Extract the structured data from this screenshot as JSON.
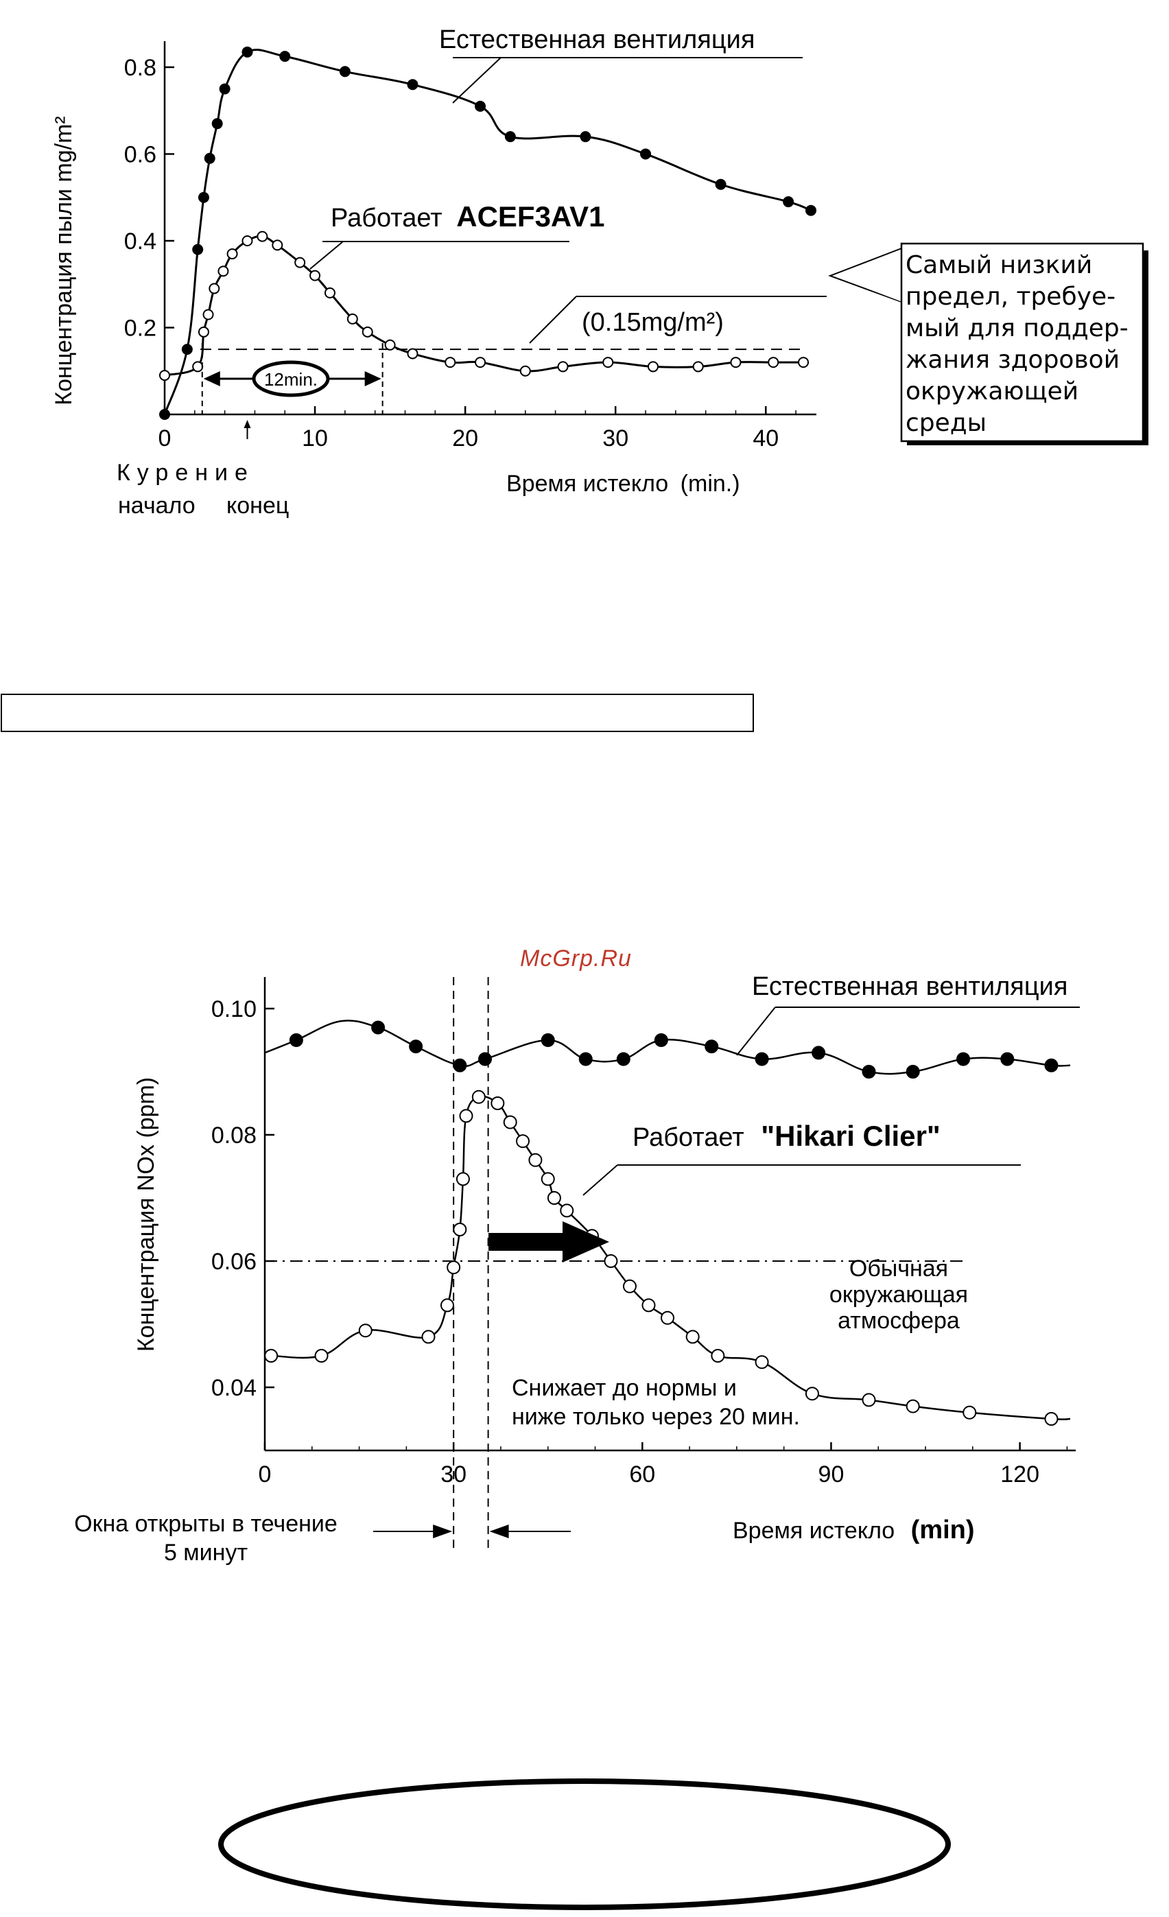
{
  "watermark": "McGrp.Ru",
  "chart_data": [
    {
      "type": "line",
      "title": "",
      "xlabel": "Время истекло",
      "xlabel_unit": "(min.)",
      "ylabel": "Концентрация пыли mg/m²",
      "xlim": [
        0,
        43
      ],
      "ylim": [
        0,
        0.86
      ],
      "x_ticks": [
        "0",
        "10",
        "20",
        "30",
        "40"
      ],
      "y_ticks": [
        "0.2",
        "0.4",
        "0.6",
        "0.8"
      ],
      "series": [
        {
          "name": "Естественная вентиляция",
          "marker": "filled",
          "x": [
            0,
            1.5,
            2.2,
            2.6,
            3.0,
            3.5,
            4.0,
            5.5,
            8.0,
            12.0,
            16.5,
            21.0,
            23.0,
            28.0,
            32.0,
            37.0,
            41.5,
            43.0
          ],
          "y": [
            0.0,
            0.15,
            0.38,
            0.5,
            0.59,
            0.67,
            0.75,
            0.835,
            0.825,
            0.79,
            0.76,
            0.71,
            0.64,
            0.64,
            0.6,
            0.53,
            0.49,
            0.47
          ]
        },
        {
          "name": "Работает ACEF3AV1",
          "name_prefix": "Работает",
          "name_model": "ACEF3AV1",
          "marker": "open",
          "x": [
            0,
            2.2,
            2.6,
            2.9,
            3.3,
            3.9,
            4.5,
            5.5,
            6.5,
            7.5,
            9.0,
            10.0,
            11.0,
            12.5,
            13.5,
            15.0,
            16.5,
            19.0,
            21.0,
            24.0,
            26.5,
            29.5,
            32.5,
            35.5,
            38.0,
            40.5,
            42.5
          ],
          "y": [
            0.09,
            0.11,
            0.19,
            0.23,
            0.29,
            0.33,
            0.37,
            0.4,
            0.41,
            0.39,
            0.35,
            0.32,
            0.28,
            0.22,
            0.19,
            0.16,
            0.14,
            0.12,
            0.12,
            0.1,
            0.11,
            0.12,
            0.11,
            0.11,
            0.12,
            0.12,
            0.12
          ]
        }
      ],
      "reference_line": {
        "y": 0.15,
        "label": "(0.15mg/m²)"
      },
      "bracket": {
        "from": 2.5,
        "to": 14.5,
        "label": "12min."
      },
      "smoking_labels": {
        "title": "Курение",
        "start": "начало",
        "end": "конец",
        "start_x": 2.5,
        "end_x": 5.5
      },
      "callout": [
        "Самый низкий",
        "предел, требуе-",
        "мый для поддер-",
        "жания здоровой",
        "окружающей",
        "среды"
      ]
    },
    {
      "type": "line",
      "title": "",
      "xlabel": "Время истекло",
      "xlabel_unit": "(min)",
      "ylabel": "Концентрация NOx (ppm)",
      "xlim": [
        0,
        128
      ],
      "ylim": [
        0.03,
        0.105
      ],
      "x_ticks": [
        "0",
        "30",
        "60",
        "90",
        "120"
      ],
      "y_ticks": [
        "0.04",
        "0.06",
        "0.08",
        "0.10"
      ],
      "series": [
        {
          "name": "Естественная вентиляция",
          "marker": "filled",
          "x": [
            0,
            5,
            12,
            18,
            24,
            31,
            35,
            45,
            51,
            57,
            63,
            71,
            79,
            88,
            96,
            103,
            111,
            118,
            125,
            128
          ],
          "y": [
            0.093,
            0.095,
            0.098,
            0.097,
            0.094,
            0.091,
            0.092,
            0.095,
            0.092,
            0.092,
            0.095,
            0.094,
            0.092,
            0.093,
            0.09,
            0.09,
            0.092,
            0.092,
            0.091,
            0.091
          ],
          "unmarked_points": [
            0,
            12,
            128
          ]
        },
        {
          "name": "Работает \"Hikari Clier\"",
          "name_prefix": "Работает",
          "name_model": "\"Hikari Clier\"",
          "marker": "open",
          "x": [
            1,
            9,
            16,
            26,
            29,
            30,
            31,
            31.5,
            32,
            34,
            37,
            39,
            41,
            43,
            45,
            46,
            48,
            52,
            55,
            58,
            61,
            64,
            68,
            72,
            79,
            87,
            96,
            103,
            112,
            125,
            128
          ],
          "y": [
            0.045,
            0.045,
            0.049,
            0.048,
            0.053,
            0.059,
            0.065,
            0.073,
            0.083,
            0.086,
            0.085,
            0.082,
            0.079,
            0.076,
            0.073,
            0.07,
            0.068,
            0.064,
            0.06,
            0.056,
            0.053,
            0.051,
            0.048,
            0.045,
            0.044,
            0.039,
            0.038,
            0.037,
            0.036,
            0.035,
            0.035
          ],
          "unmarked_points": [
            128
          ]
        }
      ],
      "reference_line": {
        "y": 0.06
      },
      "window_lines": [
        30,
        35.5
      ],
      "window_label": [
        "Окна открыты в течение",
        "5 минут"
      ],
      "ambient_label": [
        "Обычная",
        "окружающая",
        "атмосфера"
      ],
      "reduction_note": [
        "Снижает до нормы и",
        "ниже только через 20 мин."
      ]
    }
  ]
}
